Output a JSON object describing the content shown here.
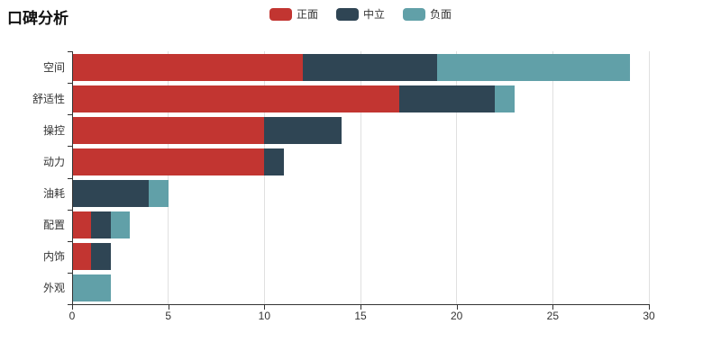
{
  "chart_data": {
    "type": "bar",
    "orientation": "horizontal",
    "stacked": true,
    "title": "口碑分析",
    "categories": [
      "空间",
      "舒适性",
      "操控",
      "动力",
      "油耗",
      "配置",
      "内饰",
      "外观"
    ],
    "series": [
      {
        "name": "正面",
        "color": "#c23531",
        "values": [
          12,
          17,
          10,
          10,
          0,
          1,
          1,
          0
        ]
      },
      {
        "name": "中立",
        "color": "#2f4554",
        "values": [
          7,
          5,
          4,
          1,
          4,
          1,
          1,
          0
        ]
      },
      {
        "name": "负面",
        "color": "#61a0a8",
        "values": [
          10,
          1,
          0,
          0,
          1,
          1,
          0,
          2
        ]
      }
    ],
    "totals": [
      29,
      23,
      14,
      11,
      5,
      3,
      2,
      2
    ],
    "xlabel": "",
    "ylabel": "",
    "xlim": [
      0,
      30
    ],
    "xticks": [
      0,
      5,
      10,
      15,
      20,
      25,
      30
    ],
    "legend_position": "top-center",
    "grid": true,
    "colors": {
      "axis": "#333333",
      "gridline": "#e0e0e0",
      "text": "#333333",
      "title": "#111111",
      "background": "#ffffff"
    }
  }
}
